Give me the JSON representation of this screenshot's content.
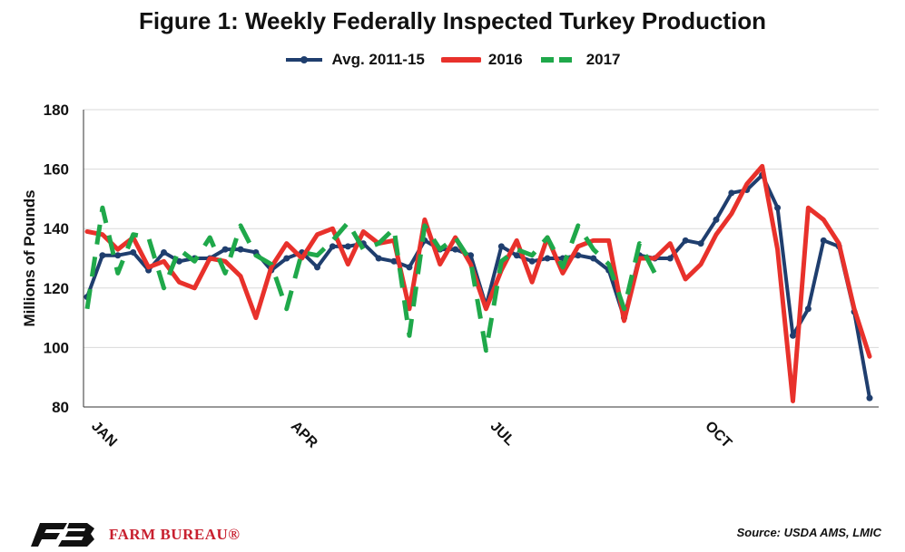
{
  "chart_data": {
    "type": "line",
    "title": "Figure 1: Weekly Federally Inspected Turkey Production",
    "ylabel": "Millions of Pounds",
    "xlabel": "",
    "ylim": [
      80,
      180
    ],
    "yticks": [
      80,
      100,
      120,
      140,
      160,
      180
    ],
    "xlim": [
      1,
      52
    ],
    "xticks": [
      {
        "label": "JAN",
        "week": 1
      },
      {
        "label": "APR",
        "week": 14
      },
      {
        "label": "JUL",
        "week": 27
      },
      {
        "label": "OCT",
        "week": 41
      }
    ],
    "grid": "horizontal",
    "legend_position": "top",
    "series": [
      {
        "name": "Avg. 2011-15",
        "color": "#1f3e6e",
        "style": "solid-markers",
        "x": [
          1,
          2,
          3,
          4,
          5,
          6,
          7,
          8,
          9,
          10,
          11,
          12,
          13,
          14,
          15,
          16,
          17,
          18,
          19,
          20,
          21,
          22,
          23,
          24,
          25,
          26,
          27,
          28,
          29,
          30,
          31,
          32,
          33,
          34,
          35,
          36,
          37,
          38,
          39,
          40,
          41,
          42,
          43,
          44,
          45,
          46,
          47,
          48,
          49,
          50,
          51,
          52
        ],
        "values": [
          117,
          131,
          131,
          132,
          126,
          132,
          129,
          130,
          130,
          133,
          133,
          132,
          126,
          130,
          132,
          127,
          134,
          134,
          135,
          130,
          129,
          127,
          136,
          133,
          133,
          131,
          114,
          134,
          131,
          129,
          130,
          130,
          131,
          130,
          126,
          110,
          131,
          130,
          130,
          136,
          135,
          143,
          152,
          153,
          158,
          147,
          104,
          113,
          136,
          134,
          112,
          83
        ]
      },
      {
        "name": "2016",
        "color": "#e8312b",
        "style": "thick",
        "x": [
          1,
          2,
          3,
          4,
          5,
          6,
          7,
          8,
          9,
          10,
          11,
          12,
          13,
          14,
          15,
          16,
          17,
          18,
          19,
          20,
          21,
          22,
          23,
          24,
          25,
          26,
          27,
          28,
          29,
          30,
          31,
          32,
          33,
          34,
          35,
          36,
          37,
          38,
          39,
          40,
          41,
          42,
          43,
          44,
          45,
          46,
          47,
          48,
          49,
          50,
          51,
          52
        ],
        "values": [
          139,
          138,
          133,
          137,
          127,
          129,
          122,
          120,
          130,
          129,
          124,
          110,
          127,
          135,
          130,
          138,
          140,
          128,
          139,
          135,
          136,
          113,
          143,
          128,
          137,
          128,
          113,
          126,
          136,
          122,
          137,
          125,
          134,
          136,
          136,
          109,
          130,
          130,
          135,
          123,
          128,
          138,
          145,
          155,
          161,
          133,
          82,
          147,
          143,
          135,
          113,
          97
        ]
      },
      {
        "name": "2017",
        "color": "#1fa84a",
        "style": "dashed",
        "x": [
          1,
          2,
          3,
          4,
          5,
          6,
          7,
          8,
          9,
          10,
          11,
          12,
          13,
          14,
          15,
          16,
          17,
          18,
          19,
          20,
          21,
          22,
          23,
          24,
          25,
          26,
          27,
          28,
          29,
          30,
          31,
          32,
          33,
          34,
          35,
          36,
          37,
          38
        ],
        "values": [
          113,
          147,
          125,
          138,
          137,
          120,
          133,
          129,
          137,
          125,
          141,
          131,
          128,
          113,
          132,
          131,
          136,
          142,
          133,
          135,
          140,
          104,
          141,
          133,
          137,
          129,
          99,
          129,
          133,
          131,
          137,
          127,
          141,
          133,
          128,
          113,
          135,
          125
        ]
      }
    ]
  },
  "legend": [
    {
      "label": "Avg. 2011-15",
      "color": "#1f3e6e"
    },
    {
      "label": "2016",
      "color": "#e8312b"
    },
    {
      "label": "2017",
      "color": "#1fa84a"
    }
  ],
  "footer": {
    "brand": "FARM BUREAU®",
    "source": "Source: USDA AMS, LMIC"
  }
}
